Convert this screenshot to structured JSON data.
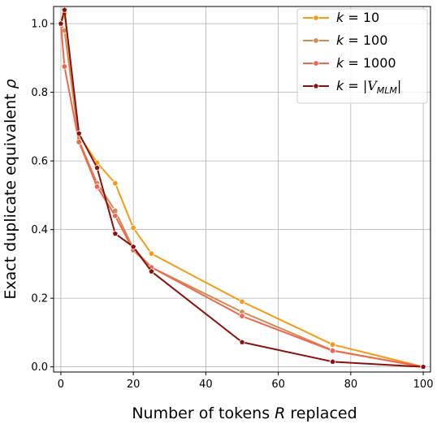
{
  "chart_data": {
    "type": "line",
    "xlabel_parts": [
      "Number of tokens ",
      "R",
      " replaced"
    ],
    "ylabel_parts": [
      "Exact duplicate equivalent ",
      "ρ"
    ],
    "xlim": [
      -2,
      102
    ],
    "ylim": [
      -0.015,
      1.05
    ],
    "xticks": [
      0,
      20,
      40,
      60,
      80,
      100
    ],
    "xtick_labels": [
      "0",
      "20",
      "40",
      "60",
      "80",
      "100"
    ],
    "yticks": [
      0.0,
      0.2,
      0.4,
      0.6,
      0.8,
      1.0
    ],
    "ytick_labels": [
      "0.0",
      "0.2",
      "0.4",
      "0.6",
      "0.8",
      "1.0"
    ],
    "grid": true,
    "legend_position": "top-right",
    "series": [
      {
        "legend_parts": [
          "k",
          " = 10",
          "",
          ""
        ],
        "color": "#f59a12",
        "marker": "circle",
        "x": [
          0,
          1,
          5,
          10,
          15,
          20,
          25,
          50,
          75,
          100
        ],
        "y": [
          1.0,
          1.03,
          0.675,
          0.595,
          0.535,
          0.405,
          0.33,
          0.19,
          0.065,
          0.0
        ]
      },
      {
        "legend_parts": [
          "k",
          " = 100",
          "",
          ""
        ],
        "color": "#d18b52",
        "marker": "circle",
        "x": [
          0,
          1,
          5,
          10,
          15,
          20,
          25,
          50,
          75,
          100
        ],
        "y": [
          1.0,
          0.98,
          0.66,
          0.535,
          0.455,
          0.345,
          0.29,
          0.16,
          0.048,
          0.0
        ]
      },
      {
        "legend_parts": [
          "k",
          " = 1000",
          "",
          ""
        ],
        "color": "#f0664c",
        "marker": "circle",
        "x": [
          0,
          1,
          5,
          10,
          15,
          20,
          25,
          50,
          75,
          100
        ],
        "y": [
          1.0,
          0.875,
          0.655,
          0.525,
          0.44,
          0.34,
          0.29,
          0.148,
          0.047,
          0.0
        ]
      },
      {
        "legend_parts": [
          "k",
          " = |",
          "V",
          "MLM",
          "|"
        ],
        "color": "#8b0f0a",
        "marker": "pentagon",
        "x": [
          0,
          1,
          5,
          10,
          15,
          20,
          25,
          50,
          75,
          100
        ],
        "y": [
          1.0,
          1.04,
          0.68,
          0.58,
          0.388,
          0.35,
          0.278,
          0.072,
          0.015,
          0.0
        ]
      }
    ]
  }
}
